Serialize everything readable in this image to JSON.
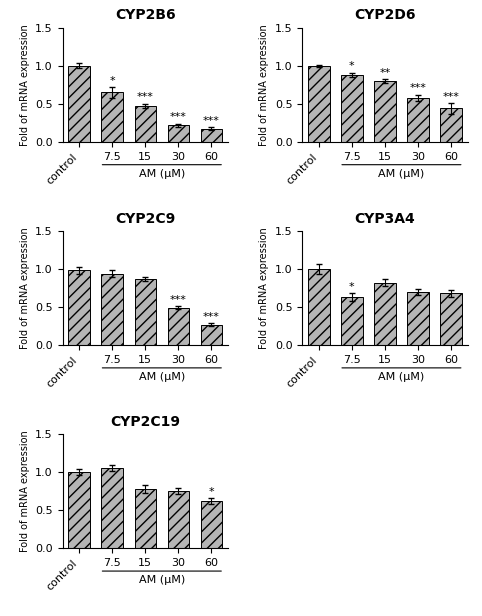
{
  "chart_data": [
    {
      "type": "bar",
      "title": "CYP2B6",
      "categories": [
        "control",
        "7.5",
        "15",
        "30",
        "60"
      ],
      "values": [
        1.0,
        0.65,
        0.47,
        0.22,
        0.17
      ],
      "errors": [
        0.03,
        0.07,
        0.03,
        0.02,
        0.02
      ],
      "annotations": [
        null,
        "*",
        "***",
        "***",
        "***"
      ],
      "color": "#b5b5b5",
      "ylabel": "Fold of mRNA expression",
      "xlabel": "AM (μM)",
      "ylim": [
        0.0,
        1.5
      ],
      "yticks": [
        0.0,
        0.5,
        1.0,
        1.5
      ],
      "grid": false
    },
    {
      "type": "bar",
      "title": "CYP2D6",
      "categories": [
        "control",
        "7.5",
        "15",
        "30",
        "60"
      ],
      "values": [
        1.0,
        0.88,
        0.8,
        0.58,
        0.44
      ],
      "errors": [
        0.01,
        0.03,
        0.02,
        0.04,
        0.07
      ],
      "annotations": [
        null,
        "*",
        "**",
        "***",
        "***"
      ],
      "color": "#b5b5b5",
      "ylabel": "Fold of mRNA expression",
      "xlabel": "AM (μM)",
      "ylim": [
        0.0,
        1.5
      ],
      "yticks": [
        0.0,
        0.5,
        1.0,
        1.5
      ],
      "grid": false
    },
    {
      "type": "bar",
      "title": "CYP2C9",
      "categories": [
        "control",
        "7.5",
        "15",
        "30",
        "60"
      ],
      "values": [
        0.98,
        0.94,
        0.87,
        0.49,
        0.27
      ],
      "errors": [
        0.04,
        0.05,
        0.03,
        0.02,
        0.02
      ],
      "annotations": [
        null,
        null,
        null,
        "***",
        "***"
      ],
      "color": "#b5b5b5",
      "ylabel": "Fold of mRNA expression",
      "xlabel": "AM (μM)",
      "ylim": [
        0.0,
        1.5
      ],
      "yticks": [
        0.0,
        0.5,
        1.0,
        1.5
      ],
      "grid": false
    },
    {
      "type": "bar",
      "title": "CYP3A4",
      "categories": [
        "control",
        "7.5",
        "15",
        "30",
        "60"
      ],
      "values": [
        1.0,
        0.63,
        0.82,
        0.7,
        0.68
      ],
      "errors": [
        0.07,
        0.05,
        0.05,
        0.04,
        0.05
      ],
      "annotations": [
        null,
        "*",
        null,
        null,
        null
      ],
      "color": "#b5b5b5",
      "ylabel": "Fold of mRNA expression",
      "xlabel": "AM (μM)",
      "ylim": [
        0.0,
        1.5
      ],
      "yticks": [
        0.0,
        0.5,
        1.0,
        1.5
      ],
      "grid": false
    },
    {
      "type": "bar",
      "title": "CYP2C19",
      "categories": [
        "control",
        "7.5",
        "15",
        "30",
        "60"
      ],
      "values": [
        1.0,
        1.05,
        0.78,
        0.75,
        0.62
      ],
      "errors": [
        0.04,
        0.04,
        0.05,
        0.04,
        0.04
      ],
      "annotations": [
        null,
        null,
        null,
        null,
        "*"
      ],
      "color": "#b5b5b5",
      "ylabel": "Fold of mRNA expression",
      "xlabel": "AM (μM)",
      "ylim": [
        0.0,
        1.5
      ],
      "yticks": [
        0.0,
        0.5,
        1.0,
        1.5
      ],
      "grid": false
    }
  ]
}
